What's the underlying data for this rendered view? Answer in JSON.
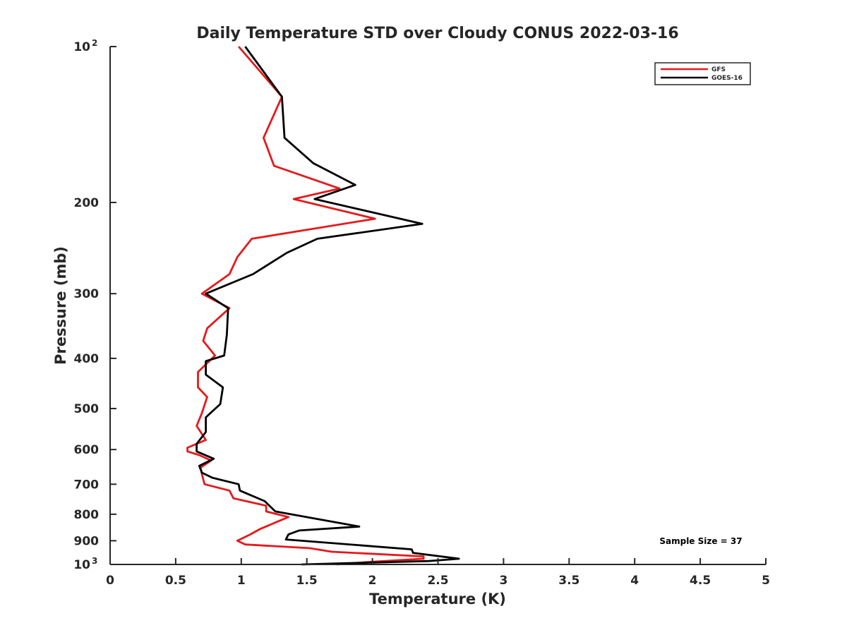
{
  "chart_data": {
    "type": "line",
    "title": "Daily Temperature STD over Cloudy CONUS 2022-03-16",
    "xlabel": "Temperature (K)",
    "ylabel": "Pressure (mb)",
    "xlim": [
      0,
      5
    ],
    "ylim": [
      100,
      1000
    ],
    "y_scale": "log",
    "y_reversed": true,
    "grid": false,
    "legend_position": "top-right",
    "x_ticks": [
      {
        "value": 0,
        "label": "0"
      },
      {
        "value": 0.5,
        "label": "0.5"
      },
      {
        "value": 1,
        "label": "1"
      },
      {
        "value": 1.5,
        "label": "1.5"
      },
      {
        "value": 2,
        "label": "2"
      },
      {
        "value": 2.5,
        "label": "2.5"
      },
      {
        "value": 3,
        "label": "3"
      },
      {
        "value": 3.5,
        "label": "3.5"
      },
      {
        "value": 4,
        "label": "4"
      },
      {
        "value": 4.5,
        "label": "4.5"
      },
      {
        "value": 5,
        "label": "5"
      }
    ],
    "y_ticks": [
      {
        "value": 100,
        "label": "10",
        "sup": "2"
      },
      {
        "value": 200,
        "label": "200"
      },
      {
        "value": 300,
        "label": "300"
      },
      {
        "value": 400,
        "label": "400"
      },
      {
        "value": 500,
        "label": "500"
      },
      {
        "value": 600,
        "label": "600"
      },
      {
        "value": 700,
        "label": "700"
      },
      {
        "value": 800,
        "label": "800"
      },
      {
        "value": 900,
        "label": "900"
      },
      {
        "value": 1000,
        "label": "10",
        "sup": "3"
      }
    ],
    "annotation": "Sample Size = 37",
    "series": [
      {
        "name": "GFS",
        "color": "#e41a1c",
        "points": [
          [
            0.98,
            100
          ],
          [
            1.31,
            125
          ],
          [
            1.17,
            150
          ],
          [
            1.25,
            170
          ],
          [
            1.75,
            188
          ],
          [
            1.4,
            197
          ],
          [
            2.02,
            215
          ],
          [
            1.08,
            235
          ],
          [
            0.97,
            255
          ],
          [
            0.91,
            275
          ],
          [
            0.7,
            300
          ],
          [
            0.91,
            320
          ],
          [
            0.74,
            350
          ],
          [
            0.71,
            370
          ],
          [
            0.8,
            395
          ],
          [
            0.67,
            425
          ],
          [
            0.67,
            455
          ],
          [
            0.74,
            475
          ],
          [
            0.7,
            510
          ],
          [
            0.66,
            540
          ],
          [
            0.73,
            575
          ],
          [
            0.59,
            595
          ],
          [
            0.59,
            605
          ],
          [
            0.68,
            615
          ],
          [
            0.77,
            630
          ],
          [
            0.69,
            650
          ],
          [
            0.7,
            670
          ],
          [
            0.72,
            700
          ],
          [
            0.91,
            720
          ],
          [
            0.94,
            745
          ],
          [
            1.19,
            770
          ],
          [
            1.19,
            790
          ],
          [
            1.36,
            810
          ],
          [
            1.26,
            830
          ],
          [
            1.14,
            855
          ],
          [
            1.07,
            875
          ],
          [
            0.97,
            900
          ],
          [
            1.03,
            915
          ],
          [
            1.52,
            930
          ],
          [
            1.69,
            945
          ],
          [
            2.39,
            965
          ],
          [
            2.39,
            975
          ],
          [
            1.95,
            990
          ],
          [
            1.73,
            1000
          ]
        ]
      },
      {
        "name": "GOES-16",
        "color": "#000000",
        "points": [
          [
            1.03,
            100
          ],
          [
            1.31,
            125
          ],
          [
            1.33,
            150
          ],
          [
            1.55,
            168
          ],
          [
            1.87,
            185
          ],
          [
            1.56,
            197
          ],
          [
            2.38,
            220
          ],
          [
            1.58,
            235
          ],
          [
            1.35,
            250
          ],
          [
            1.09,
            275
          ],
          [
            0.73,
            300
          ],
          [
            0.9,
            320
          ],
          [
            0.89,
            360
          ],
          [
            0.87,
            395
          ],
          [
            0.73,
            405
          ],
          [
            0.73,
            430
          ],
          [
            0.86,
            455
          ],
          [
            0.84,
            490
          ],
          [
            0.73,
            520
          ],
          [
            0.73,
            555
          ],
          [
            0.66,
            585
          ],
          [
            0.66,
            605
          ],
          [
            0.79,
            625
          ],
          [
            0.68,
            645
          ],
          [
            0.7,
            665
          ],
          [
            0.78,
            680
          ],
          [
            0.98,
            700
          ],
          [
            0.99,
            720
          ],
          [
            1.18,
            755
          ],
          [
            1.26,
            790
          ],
          [
            1.9,
            845
          ],
          [
            1.44,
            860
          ],
          [
            1.36,
            875
          ],
          [
            1.34,
            895
          ],
          [
            2.3,
            935
          ],
          [
            2.31,
            950
          ],
          [
            2.66,
            975
          ],
          [
            2.43,
            985
          ],
          [
            1.46,
            1000
          ]
        ]
      }
    ]
  }
}
